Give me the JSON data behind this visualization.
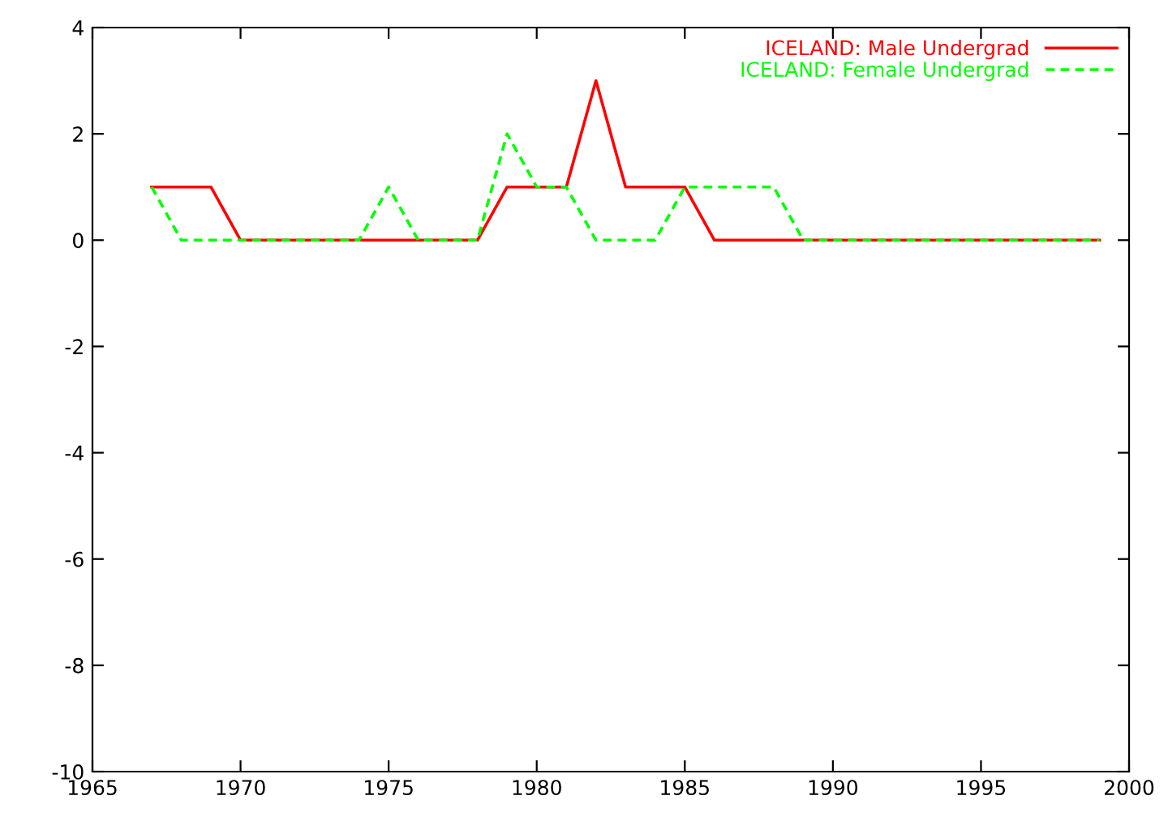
{
  "chart_data": {
    "type": "line",
    "x": [
      1967,
      1968,
      1969,
      1970,
      1971,
      1972,
      1973,
      1974,
      1975,
      1976,
      1977,
      1978,
      1979,
      1980,
      1981,
      1982,
      1983,
      1984,
      1985,
      1986,
      1987,
      1988,
      1989,
      1990,
      1991,
      1992,
      1993,
      1994,
      1995,
      1996,
      1997,
      1998,
      1999
    ],
    "series": [
      {
        "name": "ICELAND: Male Undergrad",
        "color": "#ff0000",
        "line_style": "solid",
        "values": [
          1,
          1,
          1,
          0,
          0,
          0,
          0,
          0,
          0,
          0,
          0,
          0,
          1,
          1,
          1,
          3,
          1,
          1,
          1,
          0,
          0,
          0,
          0,
          0,
          0,
          0,
          0,
          0,
          0,
          0,
          0,
          0,
          0
        ]
      },
      {
        "name": "ICELAND: Female Undergrad",
        "color": "#00ff00",
        "line_style": "dashed",
        "values": [
          1,
          0,
          0,
          0,
          0,
          0,
          0,
          0,
          1,
          0,
          0,
          0,
          2,
          1,
          1,
          0,
          0,
          0,
          1,
          1,
          1,
          1,
          0,
          0,
          0,
          0,
          0,
          0,
          0,
          0,
          0,
          0,
          0
        ]
      }
    ],
    "xlim": [
      1965,
      2000
    ],
    "xticks": [
      1965,
      1970,
      1975,
      1980,
      1985,
      1990,
      1995,
      2000
    ],
    "ylim": [
      -10,
      4
    ],
    "yticks": [
      -10,
      -8,
      -6,
      -4,
      -2,
      0,
      2,
      4
    ],
    "grid": false,
    "legend": "top right",
    "marker": "none"
  }
}
